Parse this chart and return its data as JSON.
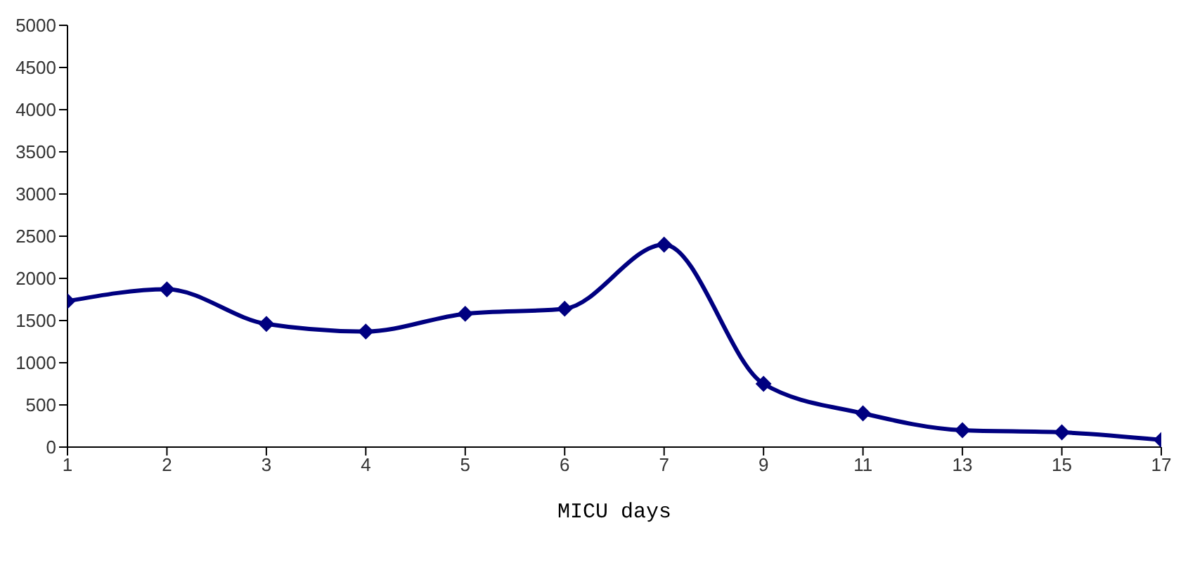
{
  "chart_data": {
    "type": "line",
    "xlabel": "MICU days",
    "categories": [
      "1",
      "2",
      "3",
      "4",
      "5",
      "6",
      "7",
      "9",
      "11",
      "13",
      "15",
      "17"
    ],
    "series": [
      {
        "color": "#000080",
        "values": [
          1730,
          1870,
          1460,
          1370,
          1580,
          1640,
          2400,
          750,
          400,
          200,
          175,
          85
        ]
      }
    ],
    "ylim": [
      0,
      5000
    ],
    "yticks": [
      0,
      500,
      1000,
      1500,
      2000,
      2500,
      3000,
      3500,
      4000,
      4500,
      5000
    ],
    "grid": false,
    "legend": false,
    "marker": "diamond",
    "line_style": "solid"
  }
}
